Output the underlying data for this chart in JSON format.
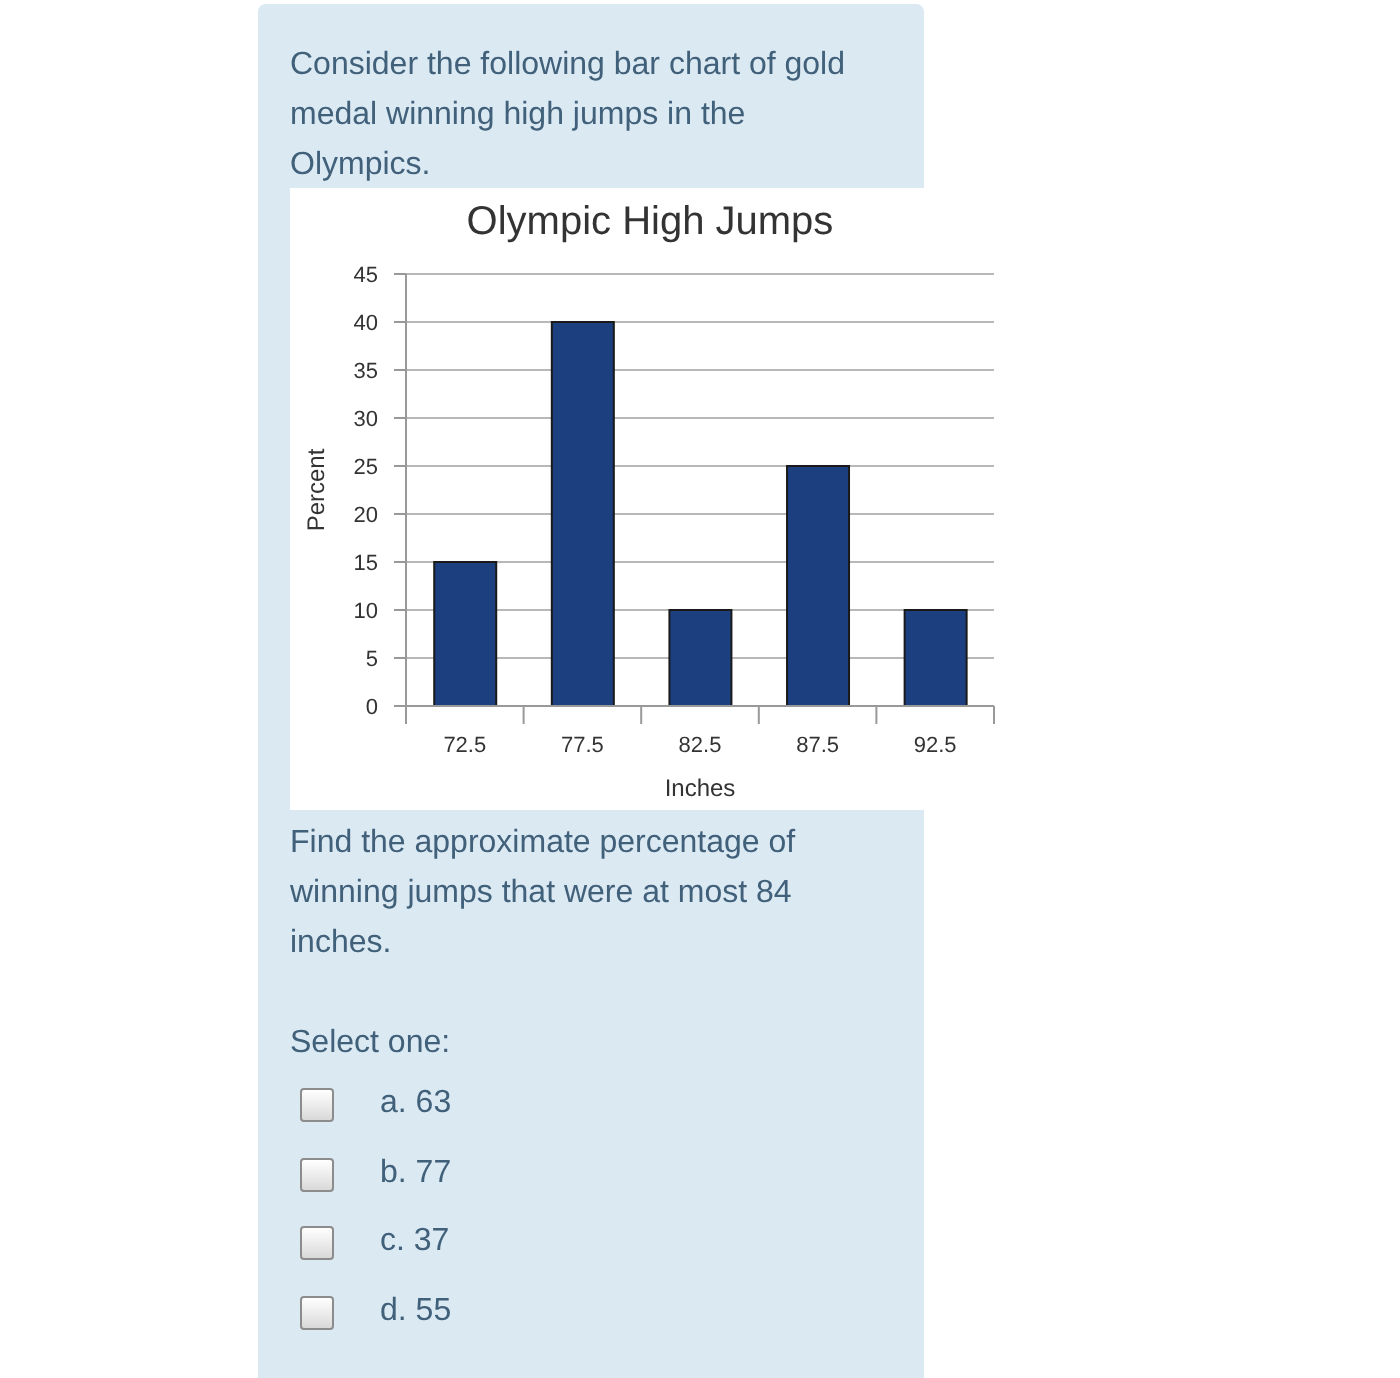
{
  "chart_data": {
    "type": "bar",
    "title": "Olympic High Jumps",
    "xlabel": "Inches",
    "ylabel": "Percent",
    "categories": [
      "72.5",
      "77.5",
      "82.5",
      "87.5",
      "92.5"
    ],
    "values": [
      15,
      40,
      10,
      25,
      10
    ],
    "color": "#1c3f80",
    "ylim": [
      0,
      45
    ],
    "yticks": [
      0,
      5,
      10,
      15,
      20,
      25,
      30,
      35,
      40,
      45
    ],
    "grid": "y",
    "annotations": [
      "Consider the following bar chart of gold medal winning high jumps in the Olympics.",
      "Find the approximate percentage of winning jumps that were at most 84 inches.",
      "Select one:",
      "a. 63",
      "b. 77",
      "c. 37",
      "d. 55"
    ]
  }
}
